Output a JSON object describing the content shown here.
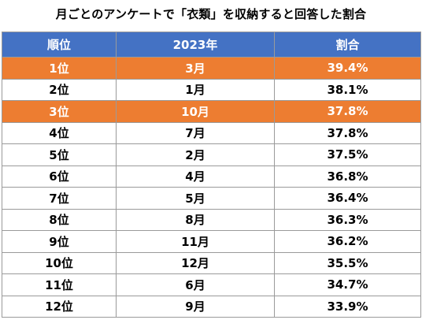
{
  "chart_data": {
    "type": "table",
    "title": "月ごとのアンケートで「衣類」を収納すると回答した割合",
    "columns": [
      "順位",
      "2023年",
      "割合"
    ],
    "rows": [
      {
        "rank": "1位",
        "month": "3月",
        "ratio": "39.4%",
        "highlight": true
      },
      {
        "rank": "2位",
        "month": "1月",
        "ratio": "38.1%",
        "highlight": false
      },
      {
        "rank": "3位",
        "month": "10月",
        "ratio": "37.8%",
        "highlight": true
      },
      {
        "rank": "4位",
        "month": "7月",
        "ratio": "37.8%",
        "highlight": false
      },
      {
        "rank": "5位",
        "month": "2月",
        "ratio": "37.5%",
        "highlight": false
      },
      {
        "rank": "6位",
        "month": "4月",
        "ratio": "36.8%",
        "highlight": false
      },
      {
        "rank": "7位",
        "month": "5月",
        "ratio": "36.4%",
        "highlight": false
      },
      {
        "rank": "8位",
        "month": "8月",
        "ratio": "36.3%",
        "highlight": false
      },
      {
        "rank": "9位",
        "month": "11月",
        "ratio": "36.2%",
        "highlight": false
      },
      {
        "rank": "10位",
        "month": "12月",
        "ratio": "35.5%",
        "highlight": false
      },
      {
        "rank": "11位",
        "month": "6月",
        "ratio": "34.7%",
        "highlight": false
      },
      {
        "rank": "12位",
        "month": "9月",
        "ratio": "33.9%",
        "highlight": false
      }
    ],
    "colors": {
      "header": "#4472c4",
      "highlight": "#ed7d31"
    }
  }
}
